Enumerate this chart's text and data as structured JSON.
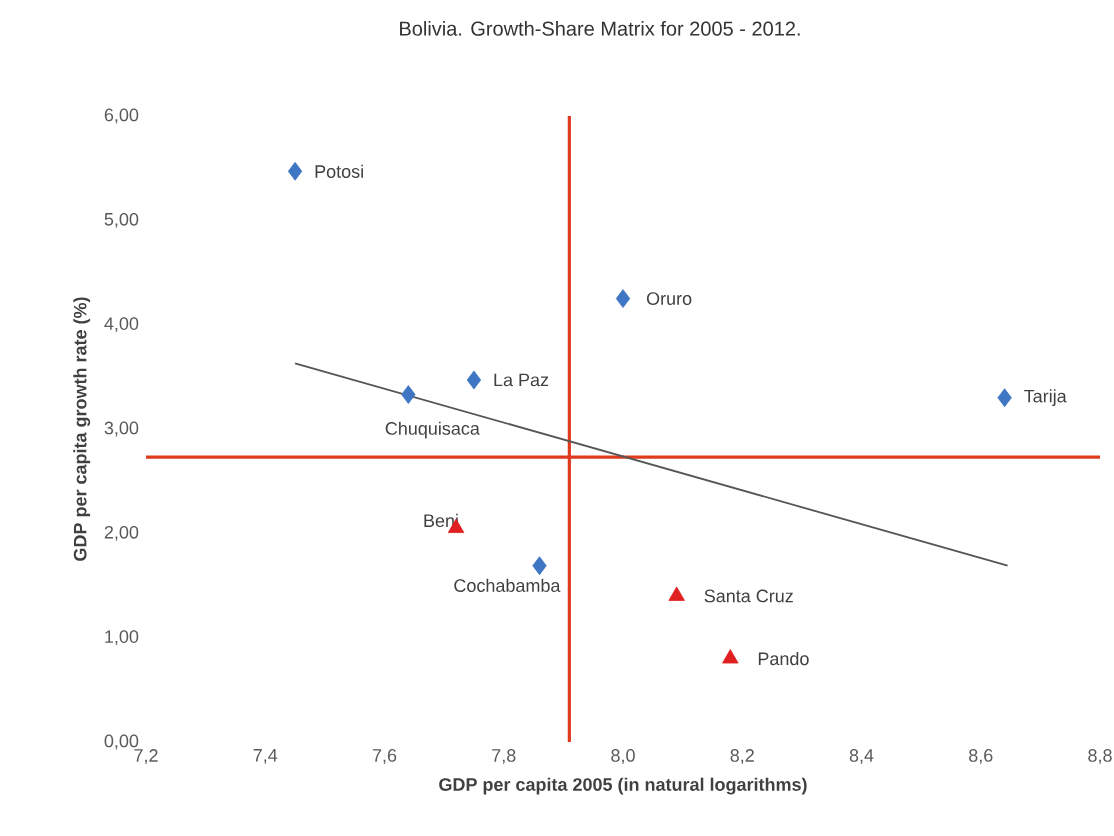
{
  "chart_data": {
    "type": "scatter",
    "title": "Bolivia. Growth-Share Matrix for 2005 - 2012.",
    "xlabel": "GDP per capita 2005 (in natural logarithms)",
    "ylabel": "GDP per capita growth rate (%)",
    "xlim": [
      7.2,
      8.8
    ],
    "ylim": [
      0,
      6
    ],
    "xticks": [
      {
        "value": 7.2,
        "label": "7,2"
      },
      {
        "value": 7.4,
        "label": "7,4"
      },
      {
        "value": 7.6,
        "label": "7,6"
      },
      {
        "value": 7.8,
        "label": "7,8"
      },
      {
        "value": 8.0,
        "label": "8,0"
      },
      {
        "value": 8.2,
        "label": "8,2"
      },
      {
        "value": 8.4,
        "label": "8,4"
      },
      {
        "value": 8.6,
        "label": "8,6"
      },
      {
        "value": 8.8,
        "label": "8,8"
      }
    ],
    "yticks": [
      {
        "value": 0,
        "label": "0,00"
      },
      {
        "value": 1,
        "label": "1,00"
      },
      {
        "value": 2,
        "label": "2,00"
      },
      {
        "value": 3,
        "label": "3,00"
      },
      {
        "value": 4,
        "label": "4,00"
      },
      {
        "value": 5,
        "label": "5,00"
      },
      {
        "value": 6,
        "label": "6,00"
      }
    ],
    "series": [
      {
        "marker": "diamond",
        "color": "#3f76c4",
        "x": [
          7.45,
          8.0,
          7.75,
          7.64,
          8.64,
          7.86
        ],
        "values": [
          5.47,
          4.25,
          3.47,
          3.33,
          3.3,
          1.69
        ]
      },
      {
        "marker": "triangle",
        "color": "#e02020",
        "x": [
          7.72,
          8.09,
          8.18
        ],
        "values": [
          2.05,
          1.4,
          0.8
        ]
      },
      {
        "type": "line",
        "line_style": "solid",
        "color": "#555555",
        "x": [
          7.45,
          8.645
        ],
        "values": [
          3.63,
          1.69
        ]
      }
    ],
    "ref_lines": [
      {
        "axis": "x",
        "value": 7.91,
        "color": "#e03a1e"
      },
      {
        "axis": "y",
        "value": 2.73,
        "color": "#e03a1e"
      }
    ],
    "annotations": [
      {
        "text": "Potosi",
        "x": 7.45,
        "y": 5.47
      },
      {
        "text": "Oruro",
        "x": 8.0,
        "y": 4.25
      },
      {
        "text": "La Paz",
        "x": 7.75,
        "y": 3.47
      },
      {
        "text": "Chuquisaca",
        "x": 7.64,
        "y": 3.33
      },
      {
        "text": "Tarija",
        "x": 8.64,
        "y": 3.3
      },
      {
        "text": "Beni",
        "x": 7.72,
        "y": 2.05
      },
      {
        "text": "Cochabamba",
        "x": 7.86,
        "y": 1.69
      },
      {
        "text": "Santa Cruz",
        "x": 8.09,
        "y": 1.4
      },
      {
        "text": "Pando",
        "x": 8.18,
        "y": 0.8
      }
    ]
  }
}
